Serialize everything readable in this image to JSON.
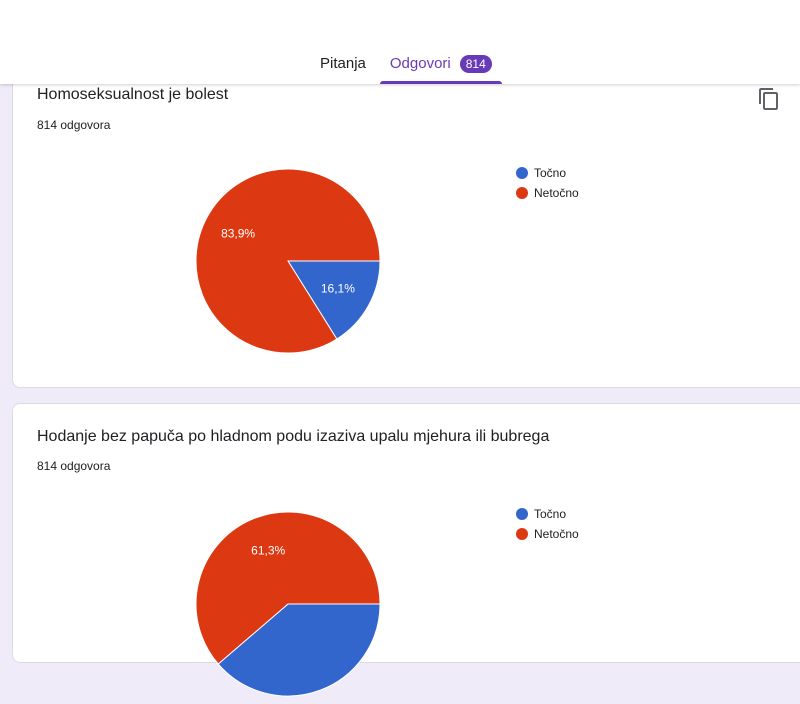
{
  "tabs": [
    {
      "label": "Pitanja",
      "active": false
    },
    {
      "label": "Odgovori",
      "active": true,
      "badge": "814"
    }
  ],
  "colors": {
    "accent": "#673ab7",
    "tocno": "#3366cc",
    "netocno": "#dc3912"
  },
  "questions": [
    {
      "title": "Homoseksualnost je bolest",
      "count": "814 odgovora",
      "legend": [
        "Točno",
        "Netočno"
      ]
    },
    {
      "title": "Hodanje bez papuča po hladnom podu izaziva upalu mjehura ili bubrega",
      "count": "814 odgovora",
      "legend": [
        "Točno",
        "Netočno"
      ]
    }
  ],
  "chart_data": [
    {
      "type": "pie",
      "categories": [
        "Točno",
        "Netočno"
      ],
      "values": [
        16.1,
        83.9
      ],
      "labels": [
        "16,1%",
        "83,9%"
      ]
    },
    {
      "type": "pie",
      "categories": [
        "Točno",
        "Netočno"
      ],
      "values": [
        38.7,
        61.3
      ],
      "labels": [
        "",
        "61,3%"
      ]
    }
  ],
  "icons": {
    "copy": "copy-icon"
  }
}
